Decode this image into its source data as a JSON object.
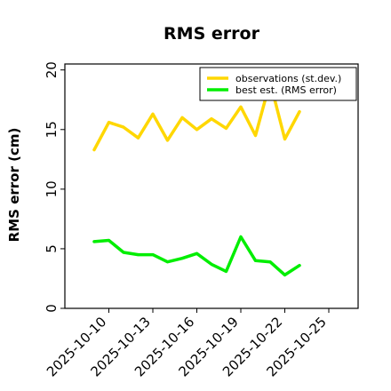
{
  "chart_data": {
    "type": "line",
    "title": "RMS error",
    "ylabel": "RMS error (cm)",
    "xlabel": "",
    "ylim": [
      0,
      20.5
    ],
    "yticks": [
      0,
      5,
      10,
      15,
      20
    ],
    "x": [
      "2025-10-09",
      "2025-10-10",
      "2025-10-11",
      "2025-10-12",
      "2025-10-13",
      "2025-10-14",
      "2025-10-15",
      "2025-10-16",
      "2025-10-17",
      "2025-10-18",
      "2025-10-19",
      "2025-10-20",
      "2025-10-21",
      "2025-10-22",
      "2025-10-23"
    ],
    "xlim": [
      "2025-10-07",
      "2025-10-27"
    ],
    "xticks": [
      "2025-10-10",
      "2025-10-13",
      "2025-10-16",
      "2025-10-19",
      "2025-10-22",
      "2025-10-25"
    ],
    "highlighted_xtick": "2025-10-16",
    "highlight_color": "#1a8a1a",
    "legend_position": "top-right",
    "grid": false,
    "series": [
      {
        "name": "observations (st.dev.)",
        "color": "#ffd700",
        "values": [
          13.3,
          15.6,
          15.2,
          14.3,
          16.3,
          14.1,
          16.0,
          15.0,
          15.9,
          15.1,
          16.9,
          14.5,
          19.0,
          14.2,
          16.5
        ]
      },
      {
        "name": "best est. (RMS error)",
        "color": "#00ee00",
        "values": [
          5.6,
          5.7,
          4.7,
          4.5,
          4.5,
          3.9,
          4.2,
          4.6,
          3.7,
          3.1,
          6.0,
          4.0,
          3.9,
          2.8,
          3.6
        ]
      }
    ]
  }
}
